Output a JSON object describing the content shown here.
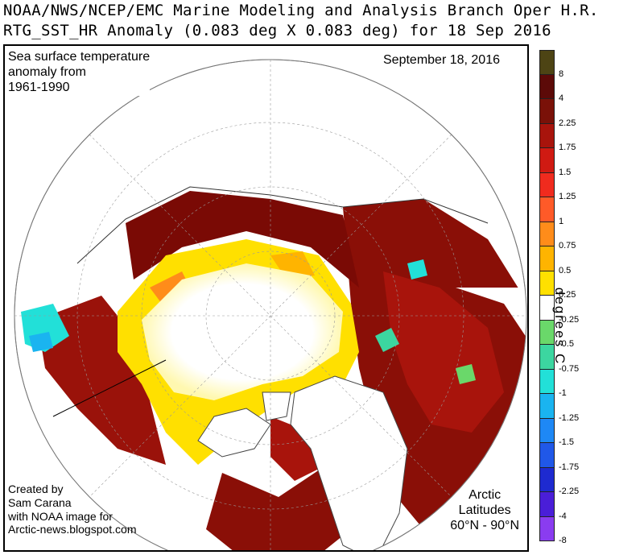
{
  "header": {
    "line1": "NOAA/NWS/NCEP/EMC Marine Modeling and Analysis Branch Oper H.R.",
    "line2": "RTG_SST_HR Anomaly (0.083 deg X 0.083 deg) for 18 Sep 2016"
  },
  "map": {
    "title_lines": [
      "Sea surface temperature",
      "anomaly from",
      "1961-1990"
    ],
    "date": "September 18, 2016",
    "credit_lines": [
      "Created by",
      "Sam Carana",
      "with NOAA image for",
      "Arctic-news.blogspot.com"
    ],
    "region_lines": [
      "Arctic",
      "Latitudes",
      "60°N - 90°N"
    ],
    "colors": {
      "land": "#ffffff",
      "ice_neutral": "#ffffff",
      "ocean_dark": "#7a0a05",
      "ocean_mid": "#b01a0a",
      "warm_yellow": "#ffe600",
      "warm_orange": "#f5b000"
    }
  },
  "colorbar": {
    "unit": "degrees C",
    "levels": [
      {
        "label": "8",
        "color": "#4d4414"
      },
      {
        "label": "4",
        "color": "#5c0a08"
      },
      {
        "label": "2.25",
        "color": "#7a1108"
      },
      {
        "label": "1.75",
        "color": "#a8140c"
      },
      {
        "label": "1.5",
        "color": "#d01a12"
      },
      {
        "label": "1.25",
        "color": "#f02b1e"
      },
      {
        "label": "1",
        "color": "#ff5a28"
      },
      {
        "label": "0.75",
        "color": "#ff8c1a"
      },
      {
        "label": "0.5",
        "color": "#ffb400"
      },
      {
        "label": "0.25",
        "color": "#ffe000"
      },
      {
        "label": "-0.25",
        "color": "#ffffff"
      },
      {
        "label": "-0.5",
        "color": "#6ad86a"
      },
      {
        "label": "-0.75",
        "color": "#3cd6a0"
      },
      {
        "label": "-1",
        "color": "#22e0d8"
      },
      {
        "label": "-1.25",
        "color": "#1ab4f0"
      },
      {
        "label": "-1.5",
        "color": "#1e88f5"
      },
      {
        "label": "-1.75",
        "color": "#2058e8"
      },
      {
        "label": "-2.25",
        "color": "#1e2ad0"
      },
      {
        "label": "-4",
        "color": "#4a1ed8"
      },
      {
        "label": "-8",
        "color": "#8a3cf0"
      }
    ]
  }
}
